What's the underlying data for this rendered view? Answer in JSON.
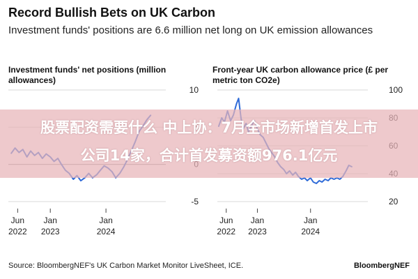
{
  "header": {
    "title": "Record Bullish Bets on UK Carbon",
    "subtitle": "Investment funds' positions are 6.6 million net long on UK emission allowances"
  },
  "banner": {
    "line1": "股票配资需要什么 中上协：7月全市场新增首发上市",
    "line2": "公司14家，合计首发募资额976.1亿元"
  },
  "footer": {
    "source": "Source: BloombergNEF's UK Carbon Market Monitor LiveSheet, ICE.",
    "brand": "BloombergNEF"
  },
  "colors": {
    "series": "#2f6bd8",
    "grid": "#d8d8d8",
    "zero_line": "#9a9a9a"
  },
  "chart_data": [
    {
      "type": "line",
      "title": "Investment funds' net positions (million allowances)",
      "xlabel": "",
      "ylabel": "",
      "xlim": [
        "2022-04-01",
        "2024-12-31"
      ],
      "ylim": [
        -5,
        10
      ],
      "yticks": [
        10,
        5,
        0,
        -5
      ],
      "xticks": [
        {
          "date": "2022-06-01",
          "line1": "Jun",
          "line2": "2022"
        },
        {
          "date": "2023-01-01",
          "line1": "Jan",
          "line2": "2023"
        },
        {
          "date": "2024-01-01",
          "line1": "Jan",
          "line2": "2024"
        }
      ],
      "grid": true,
      "series": [
        {
          "points": [
            [
              "2022-04-20",
              1.5
            ],
            [
              "2022-05-15",
              2.2
            ],
            [
              "2022-06-10",
              1.6
            ],
            [
              "2022-07-05",
              2.0
            ],
            [
              "2022-08-01",
              1.0
            ],
            [
              "2022-08-25",
              1.8
            ],
            [
              "2022-09-20",
              1.2
            ],
            [
              "2022-10-15",
              1.6
            ],
            [
              "2022-11-10",
              0.8
            ],
            [
              "2022-12-05",
              1.4
            ],
            [
              "2023-01-01",
              1.0
            ],
            [
              "2023-01-25",
              0.4
            ],
            [
              "2023-02-20",
              0.8
            ],
            [
              "2023-03-15",
              0.0
            ],
            [
              "2023-04-10",
              -0.8
            ],
            [
              "2023-05-05",
              -1.2
            ],
            [
              "2023-06-01",
              -2.0
            ],
            [
              "2023-06-25",
              -1.5
            ],
            [
              "2023-07-20",
              -2.2
            ],
            [
              "2023-08-15",
              -1.8
            ],
            [
              "2023-09-10",
              -1.2
            ],
            [
              "2023-10-05",
              -1.8
            ],
            [
              "2023-11-01",
              -1.4
            ],
            [
              "2023-11-25",
              -0.8
            ],
            [
              "2023-12-20",
              -0.2
            ],
            [
              "2024-01-15",
              -0.5
            ],
            [
              "2024-02-10",
              -1.0
            ],
            [
              "2024-03-05",
              -1.8
            ],
            [
              "2024-04-01",
              -1.2
            ],
            [
              "2024-04-25",
              -0.4
            ],
            [
              "2024-05-20",
              0.6
            ],
            [
              "2024-06-15",
              1.8
            ],
            [
              "2024-07-10",
              3.0
            ],
            [
              "2024-08-05",
              4.4
            ],
            [
              "2024-09-01",
              5.2
            ],
            [
              "2024-09-25",
              6.0
            ],
            [
              "2024-10-20",
              6.6
            ]
          ]
        }
      ]
    },
    {
      "type": "line",
      "title": "Front-year UK carbon allowance price (£ per metric ton CO2e)",
      "xlabel": "",
      "ylabel": "",
      "xlim": [
        "2022-04-01",
        "2024-12-31"
      ],
      "ylim": [
        20,
        100
      ],
      "yticks": [
        100,
        80,
        60,
        40,
        20
      ],
      "xticks": [
        {
          "date": "2022-06-01",
          "line1": "Jun",
          "line2": "2022"
        },
        {
          "date": "2023-01-01",
          "line1": "Jan",
          "line2": "2023"
        },
        {
          "date": "2024-01-01",
          "line1": "Jan",
          "line2": "2024"
        }
      ],
      "grid": true,
      "series": [
        {
          "points": [
            [
              "2022-04-10",
              74
            ],
            [
              "2022-05-01",
              80
            ],
            [
              "2022-05-20",
              77
            ],
            [
              "2022-06-10",
              85
            ],
            [
              "2022-07-01",
              78
            ],
            [
              "2022-07-20",
              82
            ],
            [
              "2022-08-10",
              90
            ],
            [
              "2022-08-25",
              94
            ],
            [
              "2022-09-10",
              80
            ],
            [
              "2022-09-25",
              72
            ],
            [
              "2022-10-15",
              76
            ],
            [
              "2022-11-01",
              70
            ],
            [
              "2022-11-20",
              74
            ],
            [
              "2022-12-10",
              78
            ],
            [
              "2023-01-01",
              72
            ],
            [
              "2023-01-20",
              68
            ],
            [
              "2023-02-10",
              66
            ],
            [
              "2023-03-01",
              62
            ],
            [
              "2023-03-20",
              58
            ],
            [
              "2023-04-10",
              55
            ],
            [
              "2023-05-01",
              52
            ],
            [
              "2023-05-20",
              48
            ],
            [
              "2023-06-10",
              45
            ],
            [
              "2023-07-01",
              43
            ],
            [
              "2023-07-20",
              40
            ],
            [
              "2023-08-10",
              42
            ],
            [
              "2023-09-01",
              39
            ],
            [
              "2023-09-20",
              41
            ],
            [
              "2023-10-10",
              38
            ],
            [
              "2023-11-01",
              36
            ],
            [
              "2023-11-20",
              37
            ],
            [
              "2023-12-10",
              35
            ],
            [
              "2024-01-01",
              37
            ],
            [
              "2024-01-20",
              34
            ],
            [
              "2024-02-10",
              33
            ],
            [
              "2024-03-01",
              35
            ],
            [
              "2024-03-20",
              34
            ],
            [
              "2024-04-10",
              36
            ],
            [
              "2024-05-01",
              35
            ],
            [
              "2024-05-20",
              37
            ],
            [
              "2024-06-10",
              36
            ],
            [
              "2024-07-01",
              37
            ],
            [
              "2024-07-20",
              36
            ],
            [
              "2024-08-10",
              38
            ],
            [
              "2024-09-01",
              42
            ],
            [
              "2024-09-20",
              46
            ],
            [
              "2024-10-10",
              45
            ]
          ]
        }
      ]
    }
  ]
}
